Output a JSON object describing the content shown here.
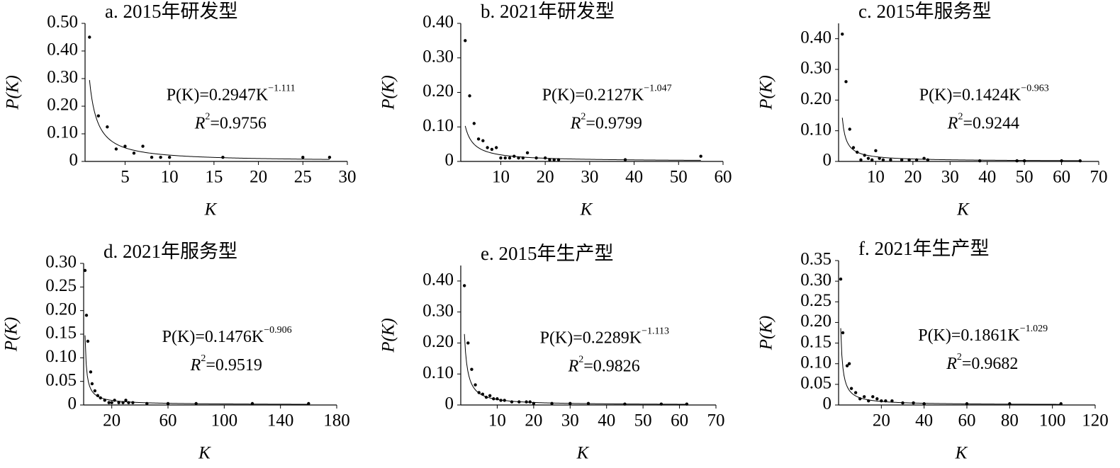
{
  "chart_data": [
    {
      "type": "scatter",
      "title": "a. 2015年研发型",
      "xlabel": "K",
      "ylabel": "P(K)",
      "color": "#000000",
      "x": [
        1,
        2,
        3,
        4,
        5,
        6,
        7,
        8,
        9,
        10,
        16,
        25,
        28
      ],
      "values": [
        0.45,
        0.165,
        0.125,
        0.045,
        0.055,
        0.03,
        0.055,
        0.015,
        0.015,
        0.015,
        0.015,
        0.015,
        0.015
      ],
      "fit": {
        "coefficient": 0.2947,
        "exponent": -1.111
      },
      "equation": [
        "P(K)=0.2947K",
        "−1.111"
      ],
      "r2": [
        "R",
        "2",
        "=0.9756"
      ],
      "xlim": [
        0.5,
        30
      ],
      "xticks": [
        5,
        10,
        15,
        20,
        25,
        30
      ],
      "ylim": [
        0,
        0.5
      ],
      "yticks": [
        0,
        {
          "value": 0.1,
          "label": "0.10"
        },
        {
          "value": 0.2,
          "label": "0.20"
        },
        {
          "value": 0.3,
          "label": "0.30"
        },
        {
          "value": 0.4,
          "label": "0.40"
        },
        {
          "value": 0.5,
          "label": "0.50"
        }
      ]
    },
    {
      "type": "scatter",
      "title": "b. 2021年研发型",
      "xlabel": "K",
      "ylabel": "P(K)",
      "color": "#000000",
      "x": [
        2,
        3,
        4,
        5,
        6,
        7,
        8,
        9,
        10,
        11,
        12,
        13,
        14,
        15,
        16,
        18,
        20,
        21,
        22,
        23,
        38,
        55
      ],
      "values": [
        0.35,
        0.19,
        0.11,
        0.065,
        0.06,
        0.04,
        0.035,
        0.04,
        0.01,
        0.01,
        0.01,
        0.015,
        0.01,
        0.01,
        0.025,
        0.01,
        0.01,
        0.005,
        0.005,
        0.005,
        0.005,
        0.015
      ],
      "fit": {
        "coefficient": 0.2127,
        "exponent": -1.047
      },
      "equation": [
        "P(K)=0.2127K",
        "−1.047"
      ],
      "r2": [
        "R",
        "2",
        "=0.9799"
      ],
      "xlim": [
        1,
        60
      ],
      "xticks": [
        10,
        20,
        30,
        40,
        50,
        60
      ],
      "ylim": [
        0,
        0.4
      ],
      "yticks": [
        0,
        {
          "value": 0.1,
          "label": "0.10"
        },
        {
          "value": 0.2,
          "label": "0.20"
        },
        {
          "value": 0.3,
          "label": "0.30"
        },
        {
          "value": 0.4,
          "label": "0.40"
        }
      ]
    },
    {
      "type": "scatter",
      "title": "c. 2015年服务型",
      "xlabel": "K",
      "ylabel": "P(K)",
      "color": "#000000",
      "x": [
        1,
        2,
        3,
        4,
        5,
        6,
        7,
        8,
        9,
        10,
        11,
        12,
        14,
        17,
        19,
        21,
        23,
        24,
        38,
        48,
        50,
        60,
        65
      ],
      "values": [
        0.415,
        0.26,
        0.105,
        0.045,
        0.03,
        0.005,
        0.02,
        0.01,
        0.005,
        0.035,
        0.01,
        0.005,
        0.005,
        0.005,
        0.005,
        0.005,
        0.01,
        0.005,
        0.002,
        0.002,
        0.002,
        0.002,
        0.002
      ],
      "fit": {
        "coefficient": 0.1424,
        "exponent": -0.963
      },
      "equation": [
        "P(K)=0.1424K",
        "−0.963"
      ],
      "r2": [
        "R",
        "2",
        "=0.9244"
      ],
      "xlim": [
        0,
        70
      ],
      "xticks": [
        10,
        20,
        30,
        40,
        50,
        60,
        70
      ],
      "ylim": [
        0,
        0.45
      ],
      "yticks": [
        0,
        {
          "value": 0.1,
          "label": "0.10"
        },
        {
          "value": 0.2,
          "label": "0.20"
        },
        {
          "value": 0.3,
          "label": "0.30"
        },
        {
          "value": 0.4,
          "label": "0.40"
        }
      ]
    },
    {
      "type": "scatter",
      "title": "d. 2021年服务型",
      "xlabel": "K",
      "ylabel": "P(K)",
      "color": "#000000",
      "x": [
        1,
        2,
        3,
        5,
        6,
        8,
        10,
        12,
        15,
        18,
        20,
        22,
        25,
        28,
        30,
        32,
        35,
        45,
        60,
        80,
        120,
        160
      ],
      "values": [
        0.285,
        0.19,
        0.135,
        0.07,
        0.045,
        0.03,
        0.02,
        0.015,
        0.01,
        0.005,
        0.005,
        0.01,
        0.005,
        0.005,
        0.01,
        0.005,
        0.005,
        0.003,
        0.003,
        0.003,
        0.003,
        0.003
      ],
      "fit": {
        "coefficient": 0.1476,
        "exponent": -0.906
      },
      "equation": [
        "P(K)=0.1476K",
        "−0.906"
      ],
      "r2": [
        "R",
        "2",
        "=0.9519"
      ],
      "xlim": [
        0,
        180
      ],
      "xticks": [
        20,
        60,
        100,
        140,
        180
      ],
      "ylim": [
        0,
        0.3
      ],
      "yticks": [
        0,
        {
          "value": 0.05,
          "label": "0.05"
        },
        {
          "value": 0.1,
          "label": "0.10"
        },
        {
          "value": 0.15,
          "label": "0.15"
        },
        {
          "value": 0.2,
          "label": "0.20"
        },
        {
          "value": 0.25,
          "label": "0.25"
        },
        {
          "value": 0.3,
          "label": "0.30"
        }
      ]
    },
    {
      "type": "scatter",
      "title": "e. 2015年生产型",
      "xlabel": "K",
      "ylabel": "P(K)",
      "color": "#000000",
      "x": [
        1,
        2,
        3,
        4,
        5,
        6,
        7,
        8,
        9,
        10,
        11,
        12,
        14,
        16,
        18,
        19,
        20,
        25,
        30,
        35,
        45,
        55,
        62
      ],
      "values": [
        0.385,
        0.2,
        0.115,
        0.065,
        0.04,
        0.035,
        0.025,
        0.03,
        0.02,
        0.02,
        0.015,
        0.015,
        0.01,
        0.01,
        0.01,
        0.01,
        0.005,
        0.005,
        0.005,
        0.005,
        0.003,
        0.003,
        0.003
      ],
      "fit": {
        "coefficient": 0.2289,
        "exponent": -1.113
      },
      "equation": [
        "P(K)=0.2289K",
        "−1.113"
      ],
      "r2": [
        "R",
        "2",
        "=0.9826"
      ],
      "xlim": [
        0,
        70
      ],
      "xticks": [
        10,
        20,
        30,
        40,
        50,
        60,
        70
      ],
      "ylim": [
        0,
        0.45
      ],
      "yticks": [
        0,
        {
          "value": 0.1,
          "label": "0.10"
        },
        {
          "value": 0.2,
          "label": "0.20"
        },
        {
          "value": 0.3,
          "label": "0.30"
        },
        {
          "value": 0.4,
          "label": "0.40"
        }
      ]
    },
    {
      "type": "scatter",
      "title": "f. 2021年生产型",
      "xlabel": "K",
      "ylabel": "P(K)",
      "color": "#000000",
      "x": [
        1,
        2,
        4,
        5,
        6,
        8,
        10,
        12,
        14,
        16,
        18,
        20,
        22,
        25,
        30,
        35,
        40,
        60,
        80,
        104
      ],
      "values": [
        0.305,
        0.175,
        0.095,
        0.1,
        0.04,
        0.03,
        0.015,
        0.02,
        0.01,
        0.02,
        0.015,
        0.01,
        0.01,
        0.01,
        0.005,
        0.005,
        0.003,
        0.003,
        0.003,
        0.003
      ],
      "fit": {
        "coefficient": 0.1861,
        "exponent": -1.029
      },
      "equation": [
        "P(K)=0.1861K",
        "−1.029"
      ],
      "r2": [
        "R",
        "2",
        "=0.9682"
      ],
      "xlim": [
        0,
        120
      ],
      "xticks": [
        20,
        40,
        60,
        80,
        100,
        120
      ],
      "ylim": [
        0,
        0.35
      ],
      "yticks": [
        0,
        {
          "value": 0.05,
          "label": "0.05"
        },
        {
          "value": 0.1,
          "label": "0.10"
        },
        {
          "value": 0.15,
          "label": "0.15"
        },
        {
          "value": 0.2,
          "label": "0.20"
        },
        {
          "value": 0.25,
          "label": "0.25"
        },
        {
          "value": 0.3,
          "label": "0.30"
        },
        {
          "value": 0.35,
          "label": "0.35"
        }
      ]
    }
  ]
}
